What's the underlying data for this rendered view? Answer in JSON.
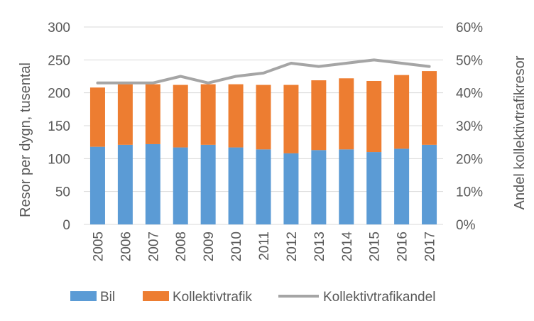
{
  "chart_data": {
    "type": "bar",
    "stacked": true,
    "title": "",
    "categories": [
      "2005",
      "2006",
      "2007",
      "2008",
      "2009",
      "2010",
      "2011",
      "2012",
      "2013",
      "2014",
      "2015",
      "2016",
      "2017"
    ],
    "series": [
      {
        "name": "Bil",
        "type": "bar",
        "axis": "left",
        "color": "#5B9BD5",
        "values": [
          118,
          121,
          122,
          117,
          121,
          117,
          114,
          108,
          113,
          114,
          110,
          115,
          121
        ]
      },
      {
        "name": "Kollektivtrafik",
        "type": "bar",
        "axis": "left",
        "color": "#ED7D31",
        "values": [
          90,
          92,
          91,
          95,
          92,
          96,
          98,
          104,
          106,
          108,
          108,
          112,
          112
        ]
      },
      {
        "name": "Kollektivtrafikandel",
        "type": "line",
        "axis": "right",
        "color": "#A5A5A5",
        "values": [
          0.43,
          0.43,
          0.43,
          0.45,
          0.43,
          0.45,
          0.46,
          0.49,
          0.48,
          0.49,
          0.5,
          0.49,
          0.48
        ]
      }
    ],
    "ylabel": "Resor per dygn, tusental",
    "y2label": "Andel kollektivtrafikresor",
    "ylim": [
      0,
      300
    ],
    "y2lim": [
      0,
      0.6
    ],
    "yticks": [
      "0",
      "50",
      "100",
      "150",
      "200",
      "250",
      "300"
    ],
    "y2ticks": [
      "0%",
      "10%",
      "20%",
      "30%",
      "40%",
      "50%",
      "60%"
    ],
    "grid": true,
    "legend_position": "bottom"
  }
}
